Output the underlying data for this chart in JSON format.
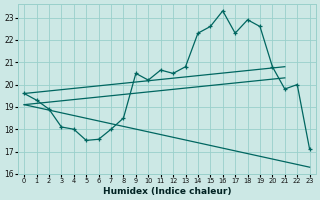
{
  "xlabel": "Humidex (Indice chaleur)",
  "bg_color": "#cce8e5",
  "grid_color": "#99d0cb",
  "line_color": "#006660",
  "xlim": [
    -0.5,
    23.5
  ],
  "ylim": [
    16,
    23.6
  ],
  "xticks": [
    0,
    1,
    2,
    3,
    4,
    5,
    6,
    7,
    8,
    9,
    10,
    11,
    12,
    13,
    14,
    15,
    16,
    17,
    18,
    19,
    20,
    21,
    22,
    23
  ],
  "yticks": [
    16,
    17,
    18,
    19,
    20,
    21,
    22,
    23
  ],
  "main_y": [
    19.6,
    19.3,
    18.9,
    18.1,
    18.0,
    17.5,
    17.55,
    18.0,
    18.5,
    20.5,
    20.2,
    20.65,
    20.5,
    20.8,
    22.3,
    22.6,
    23.3,
    22.3,
    22.9,
    22.6,
    20.8,
    19.8,
    20.0,
    17.1
  ],
  "upper_line1_x": [
    0,
    21
  ],
  "upper_line1_y": [
    19.6,
    20.8
  ],
  "upper_line2_x": [
    0,
    21
  ],
  "upper_line2_y": [
    19.1,
    20.3
  ],
  "lower_line_x": [
    0,
    23
  ],
  "lower_line_y": [
    19.1,
    16.3
  ]
}
